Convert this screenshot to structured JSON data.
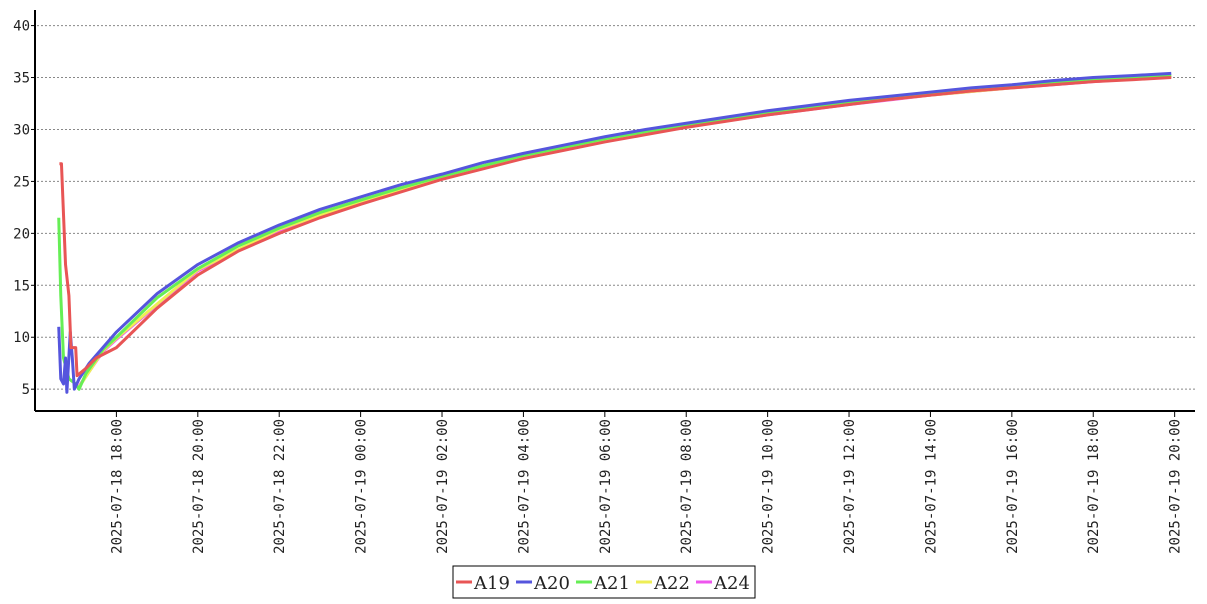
{
  "chart_data": {
    "type": "line",
    "xlim": [
      "2025-07-18 16:00",
      "2025-07-19 20:30"
    ],
    "xticks": [
      "2025-07-18 18:00",
      "2025-07-18 20:00",
      "2025-07-18 22:00",
      "2025-07-19 00:00",
      "2025-07-19 02:00",
      "2025-07-19 04:00",
      "2025-07-19 06:00",
      "2025-07-19 08:00",
      "2025-07-19 10:00",
      "2025-07-19 12:00",
      "2025-07-19 14:00",
      "2025-07-19 16:00",
      "2025-07-19 18:00",
      "2025-07-19 20:00"
    ],
    "ylim": [
      2.9,
      41.5
    ],
    "yticks": [
      5,
      10,
      15,
      20,
      25,
      30,
      35,
      40
    ],
    "grid": true,
    "series": [
      {
        "name": "A19",
        "color": "#e85555",
        "x": [
          "2025-07-18 16:36",
          "2025-07-18 16:39",
          "2025-07-18 16:45",
          "2025-07-18 16:50",
          "2025-07-18 16:53",
          "2025-07-18 17:00",
          "2025-07-18 17:02",
          "2025-07-18 17:15",
          "2025-07-18 17:30",
          "2025-07-18 18:00",
          "2025-07-18 19:00",
          "2025-07-18 20:00",
          "2025-07-18 21:00",
          "2025-07-18 22:00",
          "2025-07-18 23:00",
          "2025-07-19 00:00",
          "2025-07-19 01:00",
          "2025-07-19 02:00",
          "2025-07-19 03:00",
          "2025-07-19 04:00",
          "2025-07-19 05:00",
          "2025-07-19 06:00",
          "2025-07-19 07:00",
          "2025-07-19 08:00",
          "2025-07-19 09:00",
          "2025-07-19 10:00",
          "2025-07-19 11:00",
          "2025-07-19 12:00",
          "2025-07-19 13:00",
          "2025-07-19 14:00",
          "2025-07-19 15:00",
          "2025-07-19 16:00",
          "2025-07-19 17:00",
          "2025-07-19 18:00",
          "2025-07-19 19:00",
          "2025-07-19 19:55"
        ],
        "values": [
          26.7,
          26.7,
          17,
          14,
          9,
          9,
          6.3,
          7,
          8,
          9,
          12.8,
          16,
          18.3,
          20,
          21.5,
          22.8,
          24,
          25.2,
          26.2,
          27.2,
          28,
          28.8,
          29.5,
          30.2,
          30.8,
          31.4,
          31.9,
          32.4,
          32.9,
          33.3,
          33.7,
          34,
          34.3,
          34.6,
          34.8,
          35.0
        ]
      },
      {
        "name": "A20",
        "color": "#5555dd",
        "x": [
          "2025-07-18 16:35",
          "2025-07-18 16:38",
          "2025-07-18 16:42",
          "2025-07-18 16:45",
          "2025-07-18 16:47",
          "2025-07-18 16:52",
          "2025-07-18 16:55",
          "2025-07-18 16:58",
          "2025-07-18 17:05",
          "2025-07-18 17:20",
          "2025-07-18 17:40",
          "2025-07-18 18:00",
          "2025-07-18 19:00",
          "2025-07-18 20:00",
          "2025-07-18 21:00",
          "2025-07-18 22:00",
          "2025-07-18 23:00",
          "2025-07-19 00:00",
          "2025-07-19 01:00",
          "2025-07-19 02:00",
          "2025-07-19 03:00",
          "2025-07-19 04:00",
          "2025-07-19 05:00",
          "2025-07-19 06:00",
          "2025-07-19 07:00",
          "2025-07-19 08:00",
          "2025-07-19 09:00",
          "2025-07-19 10:00",
          "2025-07-19 11:00",
          "2025-07-19 12:00",
          "2025-07-19 13:00",
          "2025-07-19 14:00",
          "2025-07-19 15:00",
          "2025-07-19 16:00",
          "2025-07-19 17:00",
          "2025-07-19 18:00",
          "2025-07-19 19:00",
          "2025-07-19 19:55"
        ],
        "values": [
          11,
          6,
          5.5,
          8,
          4.7,
          10.5,
          8,
          5,
          6,
          7.5,
          9,
          10.5,
          14.2,
          17,
          19.1,
          20.8,
          22.3,
          23.5,
          24.7,
          25.7,
          26.8,
          27.7,
          28.5,
          29.3,
          30,
          30.6,
          31.2,
          31.8,
          32.3,
          32.8,
          33.2,
          33.6,
          34,
          34.3,
          34.7,
          35,
          35.2,
          35.4
        ]
      },
      {
        "name": "A21",
        "color": "#66ee55",
        "x": [
          "2025-07-18 16:35",
          "2025-07-18 16:38",
          "2025-07-18 16:42",
          "2025-07-18 16:50",
          "2025-07-18 17:00",
          "2025-07-18 17:05",
          "2025-07-18 17:15",
          "2025-07-18 17:40",
          "2025-07-18 18:00",
          "2025-07-18 19:00",
          "2025-07-18 20:00",
          "2025-07-18 21:00",
          "2025-07-18 22:00",
          "2025-07-18 23:00",
          "2025-07-19 00:00",
          "2025-07-19 01:00",
          "2025-07-19 02:00",
          "2025-07-19 03:00",
          "2025-07-19 04:00",
          "2025-07-19 05:00",
          "2025-07-19 06:00",
          "2025-07-19 07:00",
          "2025-07-19 08:00",
          "2025-07-19 09:00",
          "2025-07-19 10:00",
          "2025-07-19 11:00",
          "2025-07-19 12:00",
          "2025-07-19 13:00",
          "2025-07-19 14:00",
          "2025-07-19 15:00",
          "2025-07-19 16:00",
          "2025-07-19 17:00",
          "2025-07-19 18:00",
          "2025-07-19 19:00",
          "2025-07-19 19:55"
        ],
        "values": [
          21.5,
          14,
          8,
          6,
          5.5,
          5,
          6.5,
          8.8,
          10,
          13.8,
          16.6,
          18.8,
          20.5,
          22,
          23.2,
          24.4,
          25.5,
          26.5,
          27.5,
          28.3,
          29.1,
          29.8,
          30.4,
          31,
          31.6,
          32.1,
          32.6,
          33,
          33.4,
          33.8,
          34.1,
          34.5,
          34.8,
          35,
          35.2
        ]
      },
      {
        "name": "A22",
        "color": "#eeee55",
        "x": [
          "2025-07-18 17:05",
          "2025-07-18 17:40",
          "2025-07-18 18:00",
          "2025-07-18 20:00",
          "2025-07-18 22:00",
          "2025-07-19 00:00",
          "2025-07-19 02:00",
          "2025-07-19 04:00",
          "2025-07-19 06:00",
          "2025-07-19 08:00",
          "2025-07-19 10:00",
          "2025-07-19 12:00",
          "2025-07-19 14:00",
          "2025-07-19 16:00",
          "2025-07-19 18:00",
          "2025-07-19 19:55"
        ],
        "values": [
          5.2,
          8.7,
          9.9,
          16.5,
          20.4,
          23.1,
          25.4,
          27.4,
          29,
          30.3,
          31.5,
          32.5,
          33.3,
          34,
          34.7,
          35.1
        ]
      },
      {
        "name": "A24",
        "color": "#ee55ee",
        "x": [
          "2025-07-18 17:05",
          "2025-07-18 17:40",
          "2025-07-18 18:00",
          "2025-07-18 20:00",
          "2025-07-18 22:00",
          "2025-07-19 00:00",
          "2025-07-19 02:00",
          "2025-07-19 04:00",
          "2025-07-19 06:00",
          "2025-07-19 08:00",
          "2025-07-19 10:00",
          "2025-07-19 12:00",
          "2025-07-19 14:00",
          "2025-07-19 16:00",
          "2025-07-19 18:00",
          "2025-07-19 19:55"
        ],
        "values": [
          5.3,
          8.6,
          9.8,
          16.4,
          20.3,
          23,
          25.3,
          27.3,
          28.9,
          30.3,
          31.4,
          32.4,
          33.3,
          34,
          34.6,
          35.1
        ]
      }
    ]
  }
}
